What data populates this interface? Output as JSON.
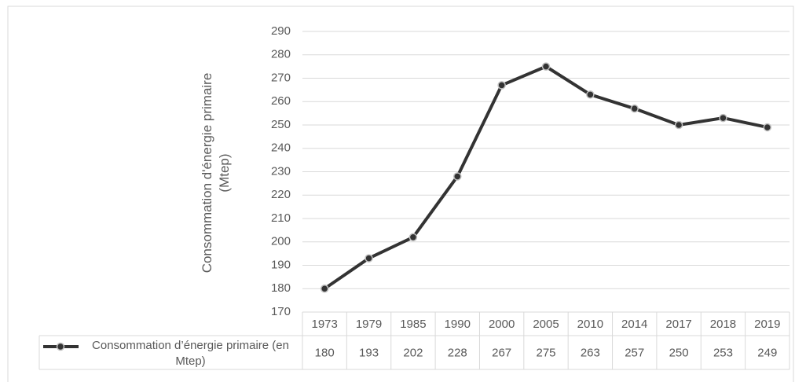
{
  "chart_data": {
    "type": "line",
    "ylabel": "Consommation d'énergie primaire (Mtep)",
    "categories": [
      "1973",
      "1979",
      "1985",
      "1990",
      "2000",
      "2005",
      "2010",
      "2014",
      "2017",
      "2018",
      "2019"
    ],
    "series": [
      {
        "name": "Consommation d’énergie primaire (en Mtep)",
        "color": "#333333",
        "values": [
          180,
          193,
          202,
          228,
          267,
          275,
          263,
          257,
          250,
          253,
          249
        ]
      }
    ],
    "ylim": [
      170,
      290
    ],
    "yticks": [
      170,
      180,
      190,
      200,
      210,
      220,
      230,
      240,
      250,
      260,
      270,
      280,
      290
    ],
    "grid": true
  }
}
